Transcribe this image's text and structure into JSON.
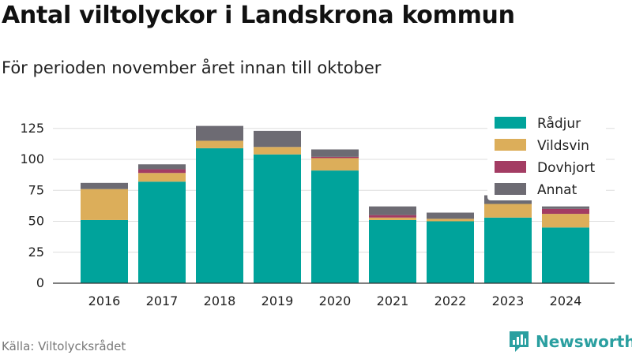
{
  "title": "Antal viltolyckor i Landskrona kommun",
  "subtitle": "För perioden november året innan till oktober",
  "source": "Källa: Viltolycksrådet",
  "brand": {
    "name": "Newsworthy",
    "icon": "newsworthy-logo-icon",
    "color": "#2a9fa0"
  },
  "chart_data": {
    "type": "bar",
    "stacked": true,
    "categories": [
      "2016",
      "2017",
      "2018",
      "2019",
      "2020",
      "2021",
      "2022",
      "2023",
      "2024"
    ],
    "series": [
      {
        "name": "Rådjur",
        "color": "#00a39b",
        "values": [
          51,
          82,
          109,
          104,
          91,
          51,
          50,
          53,
          45
        ]
      },
      {
        "name": "Vildsvin",
        "color": "#dcae5a",
        "values": [
          25,
          7,
          6,
          6,
          10,
          2,
          2,
          11,
          11
        ]
      },
      {
        "name": "Dovhjort",
        "color": "#a33c63",
        "values": [
          0,
          3,
          0,
          0,
          1,
          2,
          0,
          0,
          4
        ]
      },
      {
        "name": "Annat",
        "color": "#6d6b73",
        "values": [
          5,
          4,
          12,
          13,
          6,
          7,
          5,
          7,
          2
        ]
      }
    ],
    "yticks": [
      0,
      25,
      50,
      75,
      100,
      125
    ],
    "ylim": [
      0,
      135
    ],
    "grid": true,
    "legend": "top-right"
  }
}
